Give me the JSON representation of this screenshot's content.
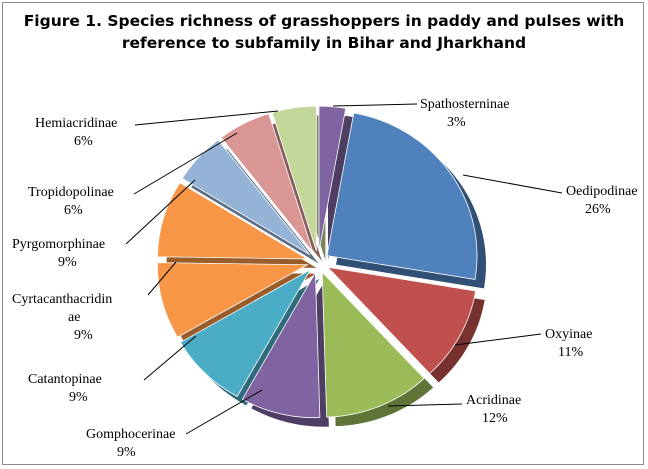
{
  "chart_data": {
    "type": "pie",
    "exploded": true,
    "title_lines": [
      "Figure 1. Species richness of grasshoppers in paddy and pulses with",
      "reference to subfamily  in Bihar and Jharkhand"
    ],
    "slices": [
      {
        "name": "Spathosterninae",
        "label_lines": [
          "Spathosterninae"
        ],
        "value_label": "3%",
        "value": 3,
        "color": "#8064a2"
      },
      {
        "name": "Oedipodinae",
        "label_lines": [
          "Oedipodinae"
        ],
        "value_label": "26%",
        "value": 26,
        "color": "#4f81bd"
      },
      {
        "name": "Oxyinae",
        "label_lines": [
          "Oxyinae"
        ],
        "value_label": "11%",
        "value": 11,
        "color": "#c0504d"
      },
      {
        "name": "Acridinae",
        "label_lines": [
          "Acridinae"
        ],
        "value_label": "12%",
        "value": 12,
        "color": "#9bbb59"
      },
      {
        "name": "Gomphocerinae",
        "label_lines": [
          "Gomphocerinae"
        ],
        "value_label": "9%",
        "value": 9,
        "color": "#8064a2"
      },
      {
        "name": "Catantopinae",
        "label_lines": [
          "Catantopinae"
        ],
        "value_label": "9%",
        "value": 9,
        "color": "#4bacc6"
      },
      {
        "name": "Cyrtacanthacridinae",
        "label_lines": [
          "Cyrtacanthacridin",
          "ae"
        ],
        "value_label": "9%",
        "value": 9,
        "color": "#f79646"
      },
      {
        "name": "Pyrgomorphinae",
        "label_lines": [
          "Pyrgomorphinae"
        ],
        "value_label": "9%",
        "value": 9,
        "color": "#f79646"
      },
      {
        "name": "Tropidopolinae",
        "label_lines": [
          "Tropidopolinae"
        ],
        "value_label": "6%",
        "value": 6,
        "color": "#95b3d7"
      },
      {
        "name": "Hemiacridinae",
        "label_lines": [
          "Hemiacridinae"
        ],
        "value_label": "6%",
        "value": 6,
        "color": "#d99694"
      },
      {
        "name": "unlabeled",
        "label_lines": [],
        "value_label": "",
        "value": 5,
        "color": "#c4d79b"
      }
    ]
  }
}
